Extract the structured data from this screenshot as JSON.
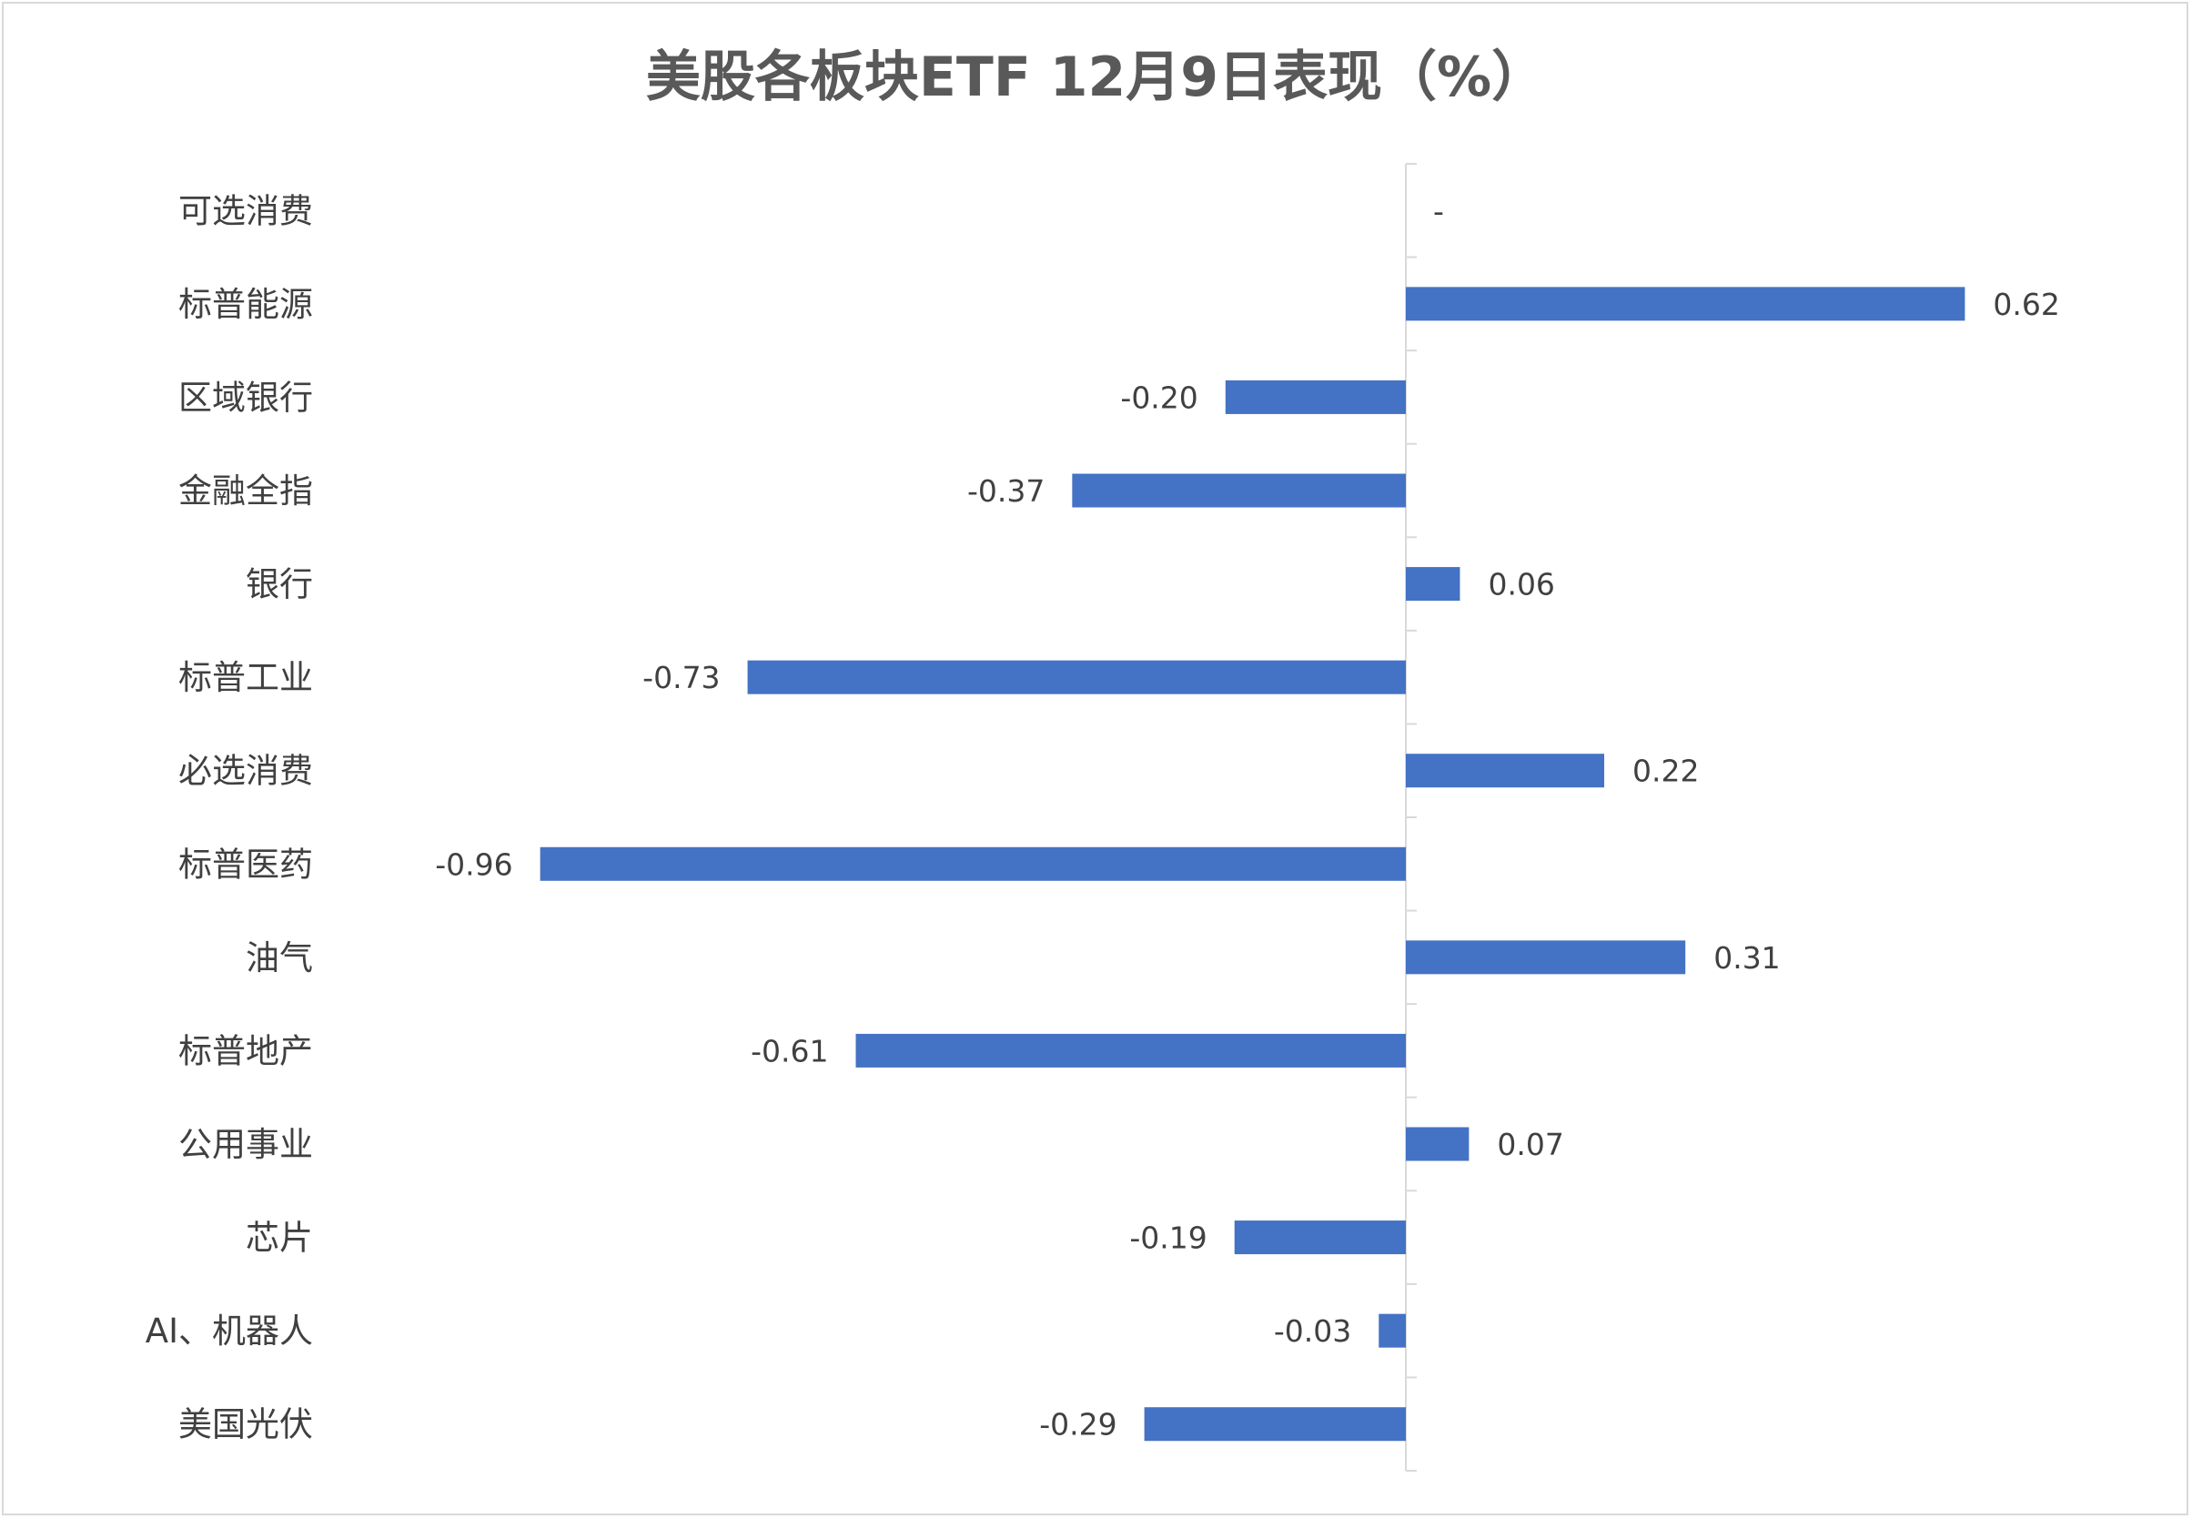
{
  "chart_data": {
    "type": "bar",
    "orientation": "horizontal",
    "title": "美股各板块ETF  12月9日表现（%）",
    "categories": [
      "可选消费",
      "标普能源",
      "区域银行",
      "金融全指",
      "银行",
      "标普工业",
      "必选消费",
      "标普医药",
      "油气",
      "标普地产",
      "公用事业",
      "芯片",
      "AI、机器人",
      "美国光伏"
    ],
    "values": [
      null,
      0.62,
      -0.2,
      -0.37,
      0.06,
      -0.73,
      0.22,
      -0.96,
      0.31,
      -0.61,
      0.07,
      -0.19,
      -0.03,
      -0.29
    ],
    "data_labels": [
      "-",
      "0.62",
      "-0.20",
      "-0.37",
      "0.06",
      "-0.73",
      "0.22",
      "-0.96",
      "0.31",
      "-0.61",
      "0.07",
      "-0.19",
      "-0.03",
      "-0.29"
    ],
    "xlabel": "",
    "ylabel": "",
    "grid": false,
    "legend": "none",
    "bar_color": "#4472C4"
  }
}
